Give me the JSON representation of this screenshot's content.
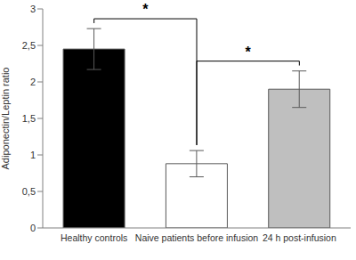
{
  "chart_data": {
    "type": "bar",
    "y_label": "Adiponectin/Leptin ratio",
    "categories": [
      "Healthy controls",
      "Naive patients before infusion",
      "24 h post-infusion"
    ],
    "values": [
      2.45,
      0.88,
      1.9
    ],
    "errors": [
      0.28,
      0.18,
      0.25
    ],
    "colors": [
      "#000000",
      "#ffffff",
      "#bfbfbf"
    ],
    "ylim": [
      0,
      3
    ],
    "yticks": [
      0,
      {
        "value": 0.5,
        "label": "0,5"
      },
      1,
      {
        "value": 1.5,
        "label": "1,5"
      },
      2,
      {
        "value": 2.5,
        "label": "2,5"
      },
      3
    ],
    "grid": false,
    "significance": [
      {
        "from": "Healthy controls",
        "to": "Naive patients before infusion",
        "label": "*"
      },
      {
        "from": "Naive patients before infusion",
        "to": "24 h post-infusion",
        "label": "*"
      }
    ]
  }
}
